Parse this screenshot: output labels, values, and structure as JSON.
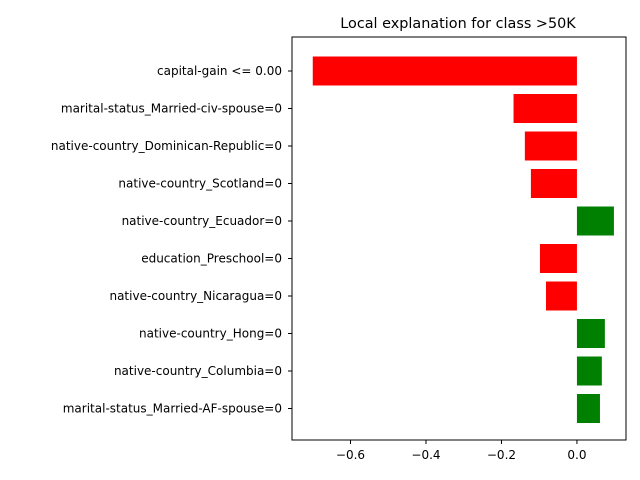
{
  "chart_data": {
    "type": "bar",
    "orientation": "horizontal",
    "title": "Local explanation for class >50K",
    "xlabel": "",
    "ylabel": "",
    "xlim": [
      -0.755,
      0.13
    ],
    "xticks": [
      -0.6,
      -0.4,
      -0.2,
      0.0
    ],
    "xtick_labels": [
      "−0.6",
      "−0.4",
      "−0.2",
      "0.0"
    ],
    "grid": false,
    "legend": "none",
    "colors": {
      "positive": "#008000",
      "negative": "#ff0000"
    },
    "categories": [
      "capital-gain <= 0.00",
      "marital-status_Married-civ-spouse=0",
      "native-country_Dominican-Republic=0",
      "native-country_Scotland=0",
      "native-country_Ecuador=0",
      "education_Preschool=0",
      "native-country_Nicaragua=0",
      "native-country_Hong=0",
      "native-country_Columbia=0",
      "marital-status_Married-AF-spouse=0"
    ],
    "values": [
      -0.7,
      -0.168,
      -0.138,
      -0.122,
      0.098,
      -0.098,
      -0.082,
      0.074,
      0.066,
      0.061
    ]
  }
}
